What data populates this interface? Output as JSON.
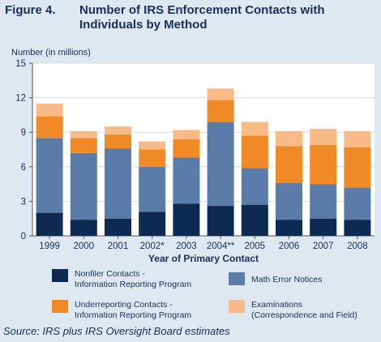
{
  "figure_label": "Figure 4.",
  "figure_title": "Number of IRS Enforcement Contacts with Individuals by Method",
  "source": "Source:  IRS plus IRS Oversight Board estimates",
  "colors": {
    "nonfiler": "#0d2a52",
    "math_error": "#5b7ca8",
    "underreporting": "#f08a24",
    "examinations": "#f8bb88",
    "text": "#1a2e5c",
    "background": "#dde8f0"
  },
  "chart_data": {
    "type": "bar",
    "stacked": true,
    "ylabel": "Number (in millions)",
    "xlabel": "Year of Primary Contact",
    "ylim": [
      0,
      15
    ],
    "yticks": [
      0,
      3,
      6,
      9,
      12,
      15
    ],
    "categories": [
      "1999",
      "2000",
      "2001",
      "2002*",
      "2003",
      "2004**",
      "2005",
      "2006",
      "2007",
      "2008"
    ],
    "series": [
      {
        "name": "Nonfiler Contacts - Information Reporting Program",
        "key": "nonfiler",
        "values": [
          2.0,
          1.4,
          1.5,
          2.1,
          2.8,
          2.6,
          2.7,
          1.4,
          1.5,
          1.4
        ]
      },
      {
        "name": "Math Error Notices",
        "key": "math_error",
        "values": [
          6.5,
          5.8,
          6.1,
          3.9,
          4.0,
          7.3,
          3.2,
          3.2,
          3.0,
          2.8
        ]
      },
      {
        "name": "Underreporting Contacts - Information Reporting Program",
        "key": "underreporting",
        "values": [
          1.9,
          1.3,
          1.2,
          1.5,
          1.6,
          1.9,
          2.8,
          3.2,
          3.4,
          3.5
        ]
      },
      {
        "name": "Examinations (Correspondence and Field)",
        "key": "examinations",
        "values": [
          1.1,
          0.6,
          0.7,
          0.7,
          0.8,
          1.0,
          1.2,
          1.3,
          1.4,
          1.4
        ]
      }
    ]
  },
  "legend": [
    {
      "key": "nonfiler",
      "label": "Nonfiler Contacts -\nInformation Reporting Program"
    },
    {
      "key": "math_error",
      "label": "Math Error Notices"
    },
    {
      "key": "underreporting",
      "label": "Underreporting Contacts -\nInformation Reporting Program"
    },
    {
      "key": "examinations",
      "label": "Examinations\n(Correspondence and Field)"
    }
  ]
}
